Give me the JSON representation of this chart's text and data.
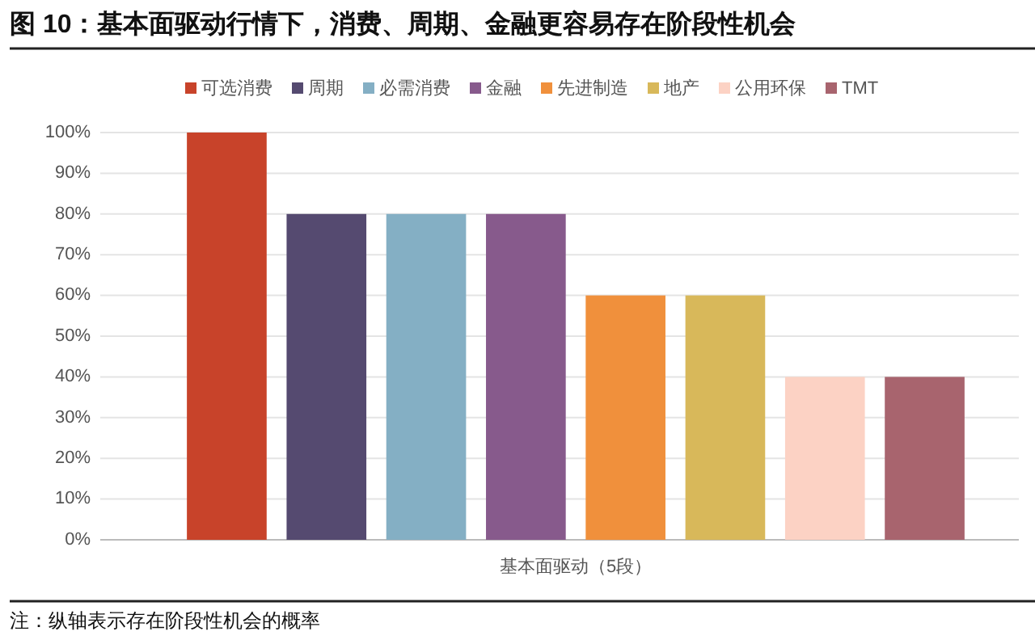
{
  "chart_data": {
    "type": "bar",
    "title": "图 10：基本面驱动行情下，消费、周期、金融更容易存在阶段性机会",
    "categories": [
      "基本面驱动（5段）"
    ],
    "series": [
      {
        "name": "可选消费",
        "color": "#c8432a",
        "values": [
          100
        ]
      },
      {
        "name": "周期",
        "color": "#554a70",
        "values": [
          80
        ]
      },
      {
        "name": "必需消费",
        "color": "#84afc4",
        "values": [
          80
        ]
      },
      {
        "name": "金融",
        "color": "#875a8c",
        "values": [
          80
        ]
      },
      {
        "name": "先进制造",
        "color": "#f0903c",
        "values": [
          60
        ]
      },
      {
        "name": "地产",
        "color": "#d8b85a",
        "values": [
          60
        ]
      },
      {
        "name": "公用环保",
        "color": "#fcd2c4",
        "values": [
          40
        ]
      },
      {
        "name": "TMT",
        "color": "#a8646e",
        "values": [
          40
        ]
      }
    ],
    "ylim": [
      0,
      100
    ],
    "yticks": [
      {
        "value": 0,
        "label": "0%"
      },
      {
        "value": 10,
        "label": "10%"
      },
      {
        "value": 20,
        "label": "20%"
      },
      {
        "value": 30,
        "label": "30%"
      },
      {
        "value": 40,
        "label": "40%"
      },
      {
        "value": 50,
        "label": "50%"
      },
      {
        "value": 60,
        "label": "60%"
      },
      {
        "value": 70,
        "label": "70%"
      },
      {
        "value": 80,
        "label": "80%"
      },
      {
        "value": 90,
        "label": "90%"
      },
      {
        "value": 100,
        "label": "100%"
      }
    ],
    "grid": "y",
    "legend": "top",
    "annotations": [
      "注：纵轴表示存在阶段性机会的概率"
    ]
  }
}
